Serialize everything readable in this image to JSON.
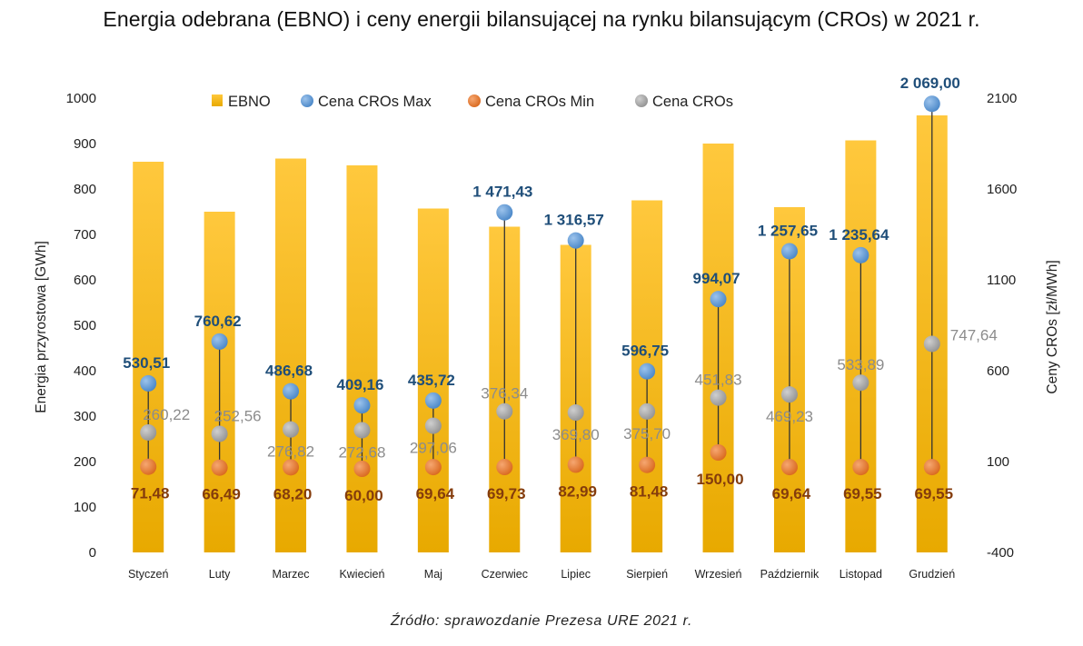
{
  "title": "Energia odebrana (EBNO) i ceny energii bilansującej na rynku bilansującym (CROs) w 2021 r.",
  "source": "Źródło: sprawozdanie Prezesa URE 2021 r.",
  "chart_data": {
    "type": "bar",
    "categories": [
      "Styczeń",
      "Luty",
      "Marzec",
      "Kwiecień",
      "Maj",
      "Czerwiec",
      "Lipiec",
      "Sierpień",
      "Wrzesień",
      "Październik",
      "Listopad",
      "Grudzień"
    ],
    "ylabel": "Energia przyrostowa [GWh]",
    "y2label": "Ceny CROs [zł/MWh]",
    "ylim": [
      0,
      1000
    ],
    "y2lim": [
      -400,
      2100
    ],
    "yticks": [
      "0",
      "100",
      "200",
      "300",
      "400",
      "500",
      "600",
      "700",
      "800",
      "900",
      "1000"
    ],
    "y2ticks": [
      "-400",
      "100",
      "600",
      "1100",
      "1600",
      "2100"
    ],
    "legend": [
      "EBNO",
      "Cena CROs Max",
      "Cena CROs Min",
      "Cena CROs"
    ],
    "legend_position": "top",
    "series": [
      {
        "name": "EBNO",
        "axis": "left",
        "kind": "bar",
        "values": [
          860,
          750,
          867,
          852,
          757,
          717,
          677,
          775,
          900,
          760,
          907,
          962
        ]
      },
      {
        "name": "Cena CROs Max",
        "axis": "right",
        "kind": "point",
        "values": [
          530.51,
          760.62,
          486.68,
          409.16,
          435.72,
          1471.43,
          1316.57,
          596.75,
          994.07,
          1257.65,
          1235.64,
          2069.0
        ],
        "labels": [
          "530,51",
          "760,62",
          "486,68",
          "409,16",
          "435,72",
          "1 471,43",
          "1 316,57",
          "596,75",
          "994,07",
          "1 257,65",
          "1 235,64",
          "2 069,00"
        ]
      },
      {
        "name": "Cena CROs Min",
        "axis": "right",
        "kind": "point",
        "values": [
          71.48,
          66.49,
          68.2,
          60.0,
          69.64,
          69.73,
          82.99,
          81.48,
          150.0,
          69.64,
          69.55,
          69.55
        ],
        "labels": [
          "71,48",
          "66,49",
          "68,20",
          "60,00",
          "69,64",
          "69,73",
          "82,99",
          "81,48",
          "150,00",
          "69,64",
          "69,55",
          "69,55"
        ]
      },
      {
        "name": "Cena CROs",
        "axis": "right",
        "kind": "point",
        "values": [
          260.22,
          252.56,
          276.82,
          272.68,
          297.06,
          376.34,
          369.8,
          375.7,
          451.83,
          469.23,
          533.89,
          747.64
        ],
        "labels": [
          "260,22",
          "252,56",
          "276,82",
          "272,68",
          "297,06",
          "376,34",
          "369,80",
          "375,70",
          "451,83",
          "469,23",
          "533,89",
          "747,64"
        ]
      }
    ],
    "colors": {
      "bar_top": "#ffc83d",
      "bar_bottom": "#e8a900",
      "max": "#5b9bd5",
      "min": "#ed7d31",
      "avg": "#a5a5a5",
      "whisker": "#333333"
    }
  }
}
